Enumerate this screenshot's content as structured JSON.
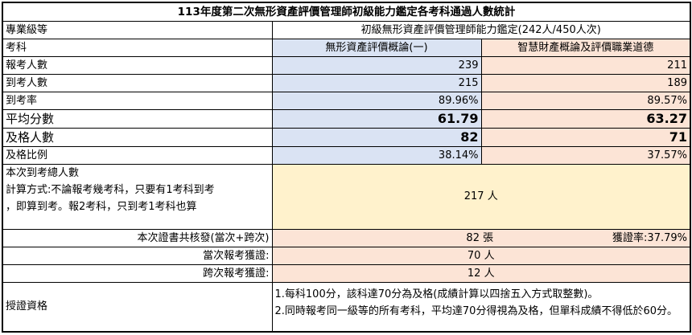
{
  "title": "113年度第二次無形資產評價管理師初級能力鑑定各考科通過人數統計",
  "level_label": "專業級等",
  "level_value": "初級無形資產評價管理師能力鑑定(242人/450人次)",
  "subject_label": "考科",
  "subjects": [
    "無形資產評價概論(一)",
    "智慧財產概論及評價職業道德"
  ],
  "rows": [
    {
      "label": "報考人數",
      "values": [
        "239",
        "211"
      ]
    },
    {
      "label": "到考人數",
      "values": [
        "215",
        "189"
      ]
    },
    {
      "label": "到考率",
      "values": [
        "89.96%",
        "89.57%"
      ]
    },
    {
      "label": "平均分數",
      "values": [
        "61.79",
        "63.27"
      ]
    },
    {
      "label": "及格人數",
      "values": [
        "82",
        "71"
      ]
    },
    {
      "label": "及格比例",
      "values": [
        "38.14%",
        "37.57%"
      ]
    }
  ],
  "total_attend": {
    "lines": [
      "本次到考總人數",
      "計算方式:不論報考幾考科，只要有1考科到考",
      "，即算到考。報2考科，只到考1考科也算"
    ],
    "value": "217 人"
  },
  "certs": {
    "label": "本次證書共核發(當次+跨次)",
    "value": "82 張",
    "rate": "獲證率:37.79%"
  },
  "current": {
    "label": "當次報考獲證:",
    "value": "70 人"
  },
  "cross": {
    "label": "跨次報考獲證:",
    "value": "12 人"
  },
  "qualification": {
    "label": "授證資格",
    "lines": [
      "1.每科100分，該科達70分為及格(成績計算以四捨五入方式取整數)。",
      "2.同時報考同一級等的所有考科，平均達70分得視為及格，但單科成績不得低於60分。"
    ]
  }
}
